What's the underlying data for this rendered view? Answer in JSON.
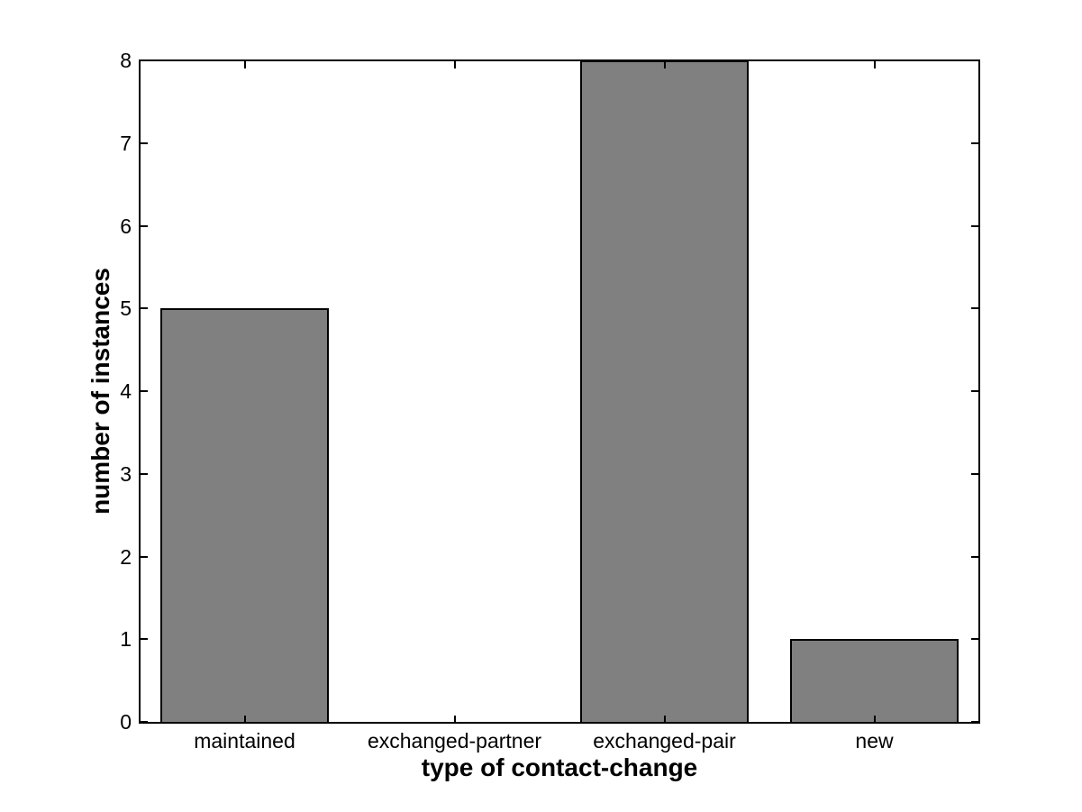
{
  "figure": {
    "background_color": "#ffffff",
    "bar_fill_color": "#808080",
    "bar_edge_color": "#000000",
    "axis_color": "#000000",
    "text_color": "#000000"
  },
  "chart_data": {
    "type": "bar",
    "title": "",
    "xlabel": "type of contact-change",
    "ylabel": "number of instances",
    "categories": [
      "maintained",
      "exchanged-partner",
      "exchanged-pair",
      "new"
    ],
    "values": [
      5,
      0,
      8,
      1
    ],
    "ylim": [
      0,
      8
    ],
    "yticks": [
      0,
      1,
      2,
      3,
      4,
      5,
      6,
      7,
      8
    ],
    "ytick_labels": [
      "0",
      "1",
      "2",
      "3",
      "4",
      "5",
      "6",
      "7",
      "8"
    ],
    "bar_width_fraction": 0.8,
    "grid": false,
    "legend_position": "none",
    "style": "matlab-box-axes-inward-ticks"
  }
}
